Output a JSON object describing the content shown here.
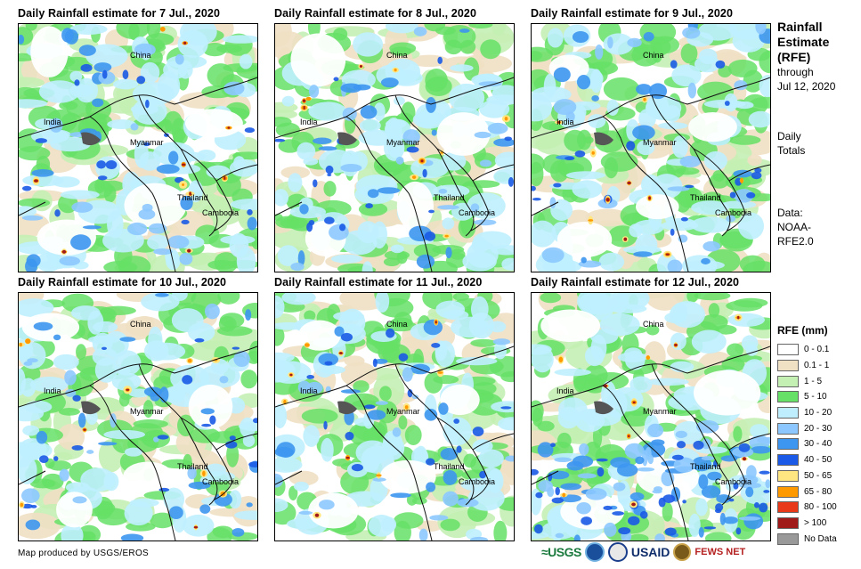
{
  "panels": [
    {
      "title": "Daily Rainfall estimate for 7 Jul., 2020",
      "labels": {
        "china": "China",
        "india": "India",
        "myanmar": "Myanmar",
        "thailand": "Thailand",
        "cambodia": "Cambodia"
      }
    },
    {
      "title": "Daily Rainfall estimate for 8 Jul., 2020",
      "labels": {
        "china": "China",
        "india": "India",
        "myanmar": "Myanmar",
        "thailand": "Thailand",
        "cambodia": "Cambodia"
      }
    },
    {
      "title": "Daily Rainfall estimate for 9 Jul., 2020",
      "labels": {
        "china": "China",
        "india": "India",
        "myanmar": "Myanmar",
        "thailand": "Thailand",
        "cambodia": "Cambodia"
      }
    },
    {
      "title": "Daily Rainfall estimate for 10 Jul., 2020",
      "labels": {
        "china": "China",
        "india": "India",
        "myanmar": "Myanmar",
        "thailand": "Thailand",
        "cambodia": "Cambodia"
      }
    },
    {
      "title": "Daily Rainfall estimate for 11 Jul., 2020",
      "labels": {
        "china": "China",
        "india": "India",
        "myanmar": "Myanmar",
        "thailand": "Thailand",
        "cambodia": "Cambodia"
      }
    },
    {
      "title": "Daily Rainfall estimate for 12 Jul., 2020",
      "labels": {
        "china": "China",
        "india": "India",
        "myanmar": "Myanmar",
        "thailand": "Thailand",
        "cambodia": "Cambodia"
      }
    }
  ],
  "side": {
    "title_line1": "Rainfall",
    "title_line2": "Estimate",
    "title_line3": "(RFE)",
    "through": "through",
    "date": "Jul 12, 2020",
    "daily": "Daily",
    "totals": "Totals",
    "data_label": "Data:",
    "source1": "NOAA-",
    "source2": "RFE2.0"
  },
  "legend": {
    "title": "RFE (mm)",
    "items": [
      {
        "label": "0 - 0.1",
        "color": "#ffffff"
      },
      {
        "label": "0.1 - 1",
        "color": "#f0e0c4"
      },
      {
        "label": "1 - 5",
        "color": "#c4f0b4"
      },
      {
        "label": "5 - 10",
        "color": "#66e066"
      },
      {
        "label": "10 - 20",
        "color": "#bfefff"
      },
      {
        "label": "20 - 30",
        "color": "#8cc8ff"
      },
      {
        "label": "30 - 40",
        "color": "#3d96f0"
      },
      {
        "label": "40 - 50",
        "color": "#1a5ae6"
      },
      {
        "label": "50 - 65",
        "color": "#ffe680"
      },
      {
        "label": "65 - 80",
        "color": "#ff9900"
      },
      {
        "label": "80 - 100",
        "color": "#e83a1a"
      },
      {
        "label": "> 100",
        "color": "#a01a1a"
      },
      {
        "label": "No Data",
        "color": "#999999"
      }
    ]
  },
  "footer": {
    "credit": "Map produced by USGS/EROS"
  },
  "logos": {
    "usgs": "≈USGS",
    "usaid": "USAID",
    "fewsnet": "FEWS NET"
  }
}
